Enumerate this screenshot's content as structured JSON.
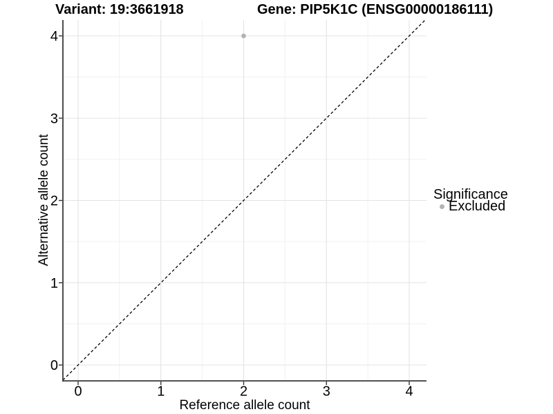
{
  "chart_data": {
    "type": "scatter",
    "variant_title": "Variant: 19:3661918",
    "gene_title": "Gene: PIP5K1C (ENSG00000186111)",
    "xlabel": "Reference allele count",
    "ylabel": "Alternative allele count",
    "xlim": [
      -0.2,
      4.2
    ],
    "ylim": [
      -0.2,
      4.2
    ],
    "x_ticks": [
      0,
      1,
      2,
      3,
      4
    ],
    "y_ticks": [
      0,
      1,
      2,
      3,
      4
    ],
    "grid": {
      "major": true,
      "minor": true
    },
    "series": [
      {
        "name": "Excluded",
        "color": "#b3b3b3",
        "points": [
          {
            "x": 2,
            "y": 4
          }
        ]
      }
    ],
    "identity_line": {
      "slope": 1,
      "intercept": 0,
      "style": "dashed",
      "color": "#000000"
    },
    "legend_position": "right"
  },
  "legend": {
    "title": "Significance",
    "items": [
      {
        "label": "Excluded",
        "color": "#b3b3b3"
      }
    ]
  },
  "colors": {
    "background": "#ffffff",
    "grid_major": "#e3e3e3",
    "grid_minor": "#f0f0f0",
    "axis_line": "#383838",
    "tick_mark": "#333333",
    "text": "#000000",
    "point": "#b3b3b3",
    "dashed_line": "#000000"
  }
}
